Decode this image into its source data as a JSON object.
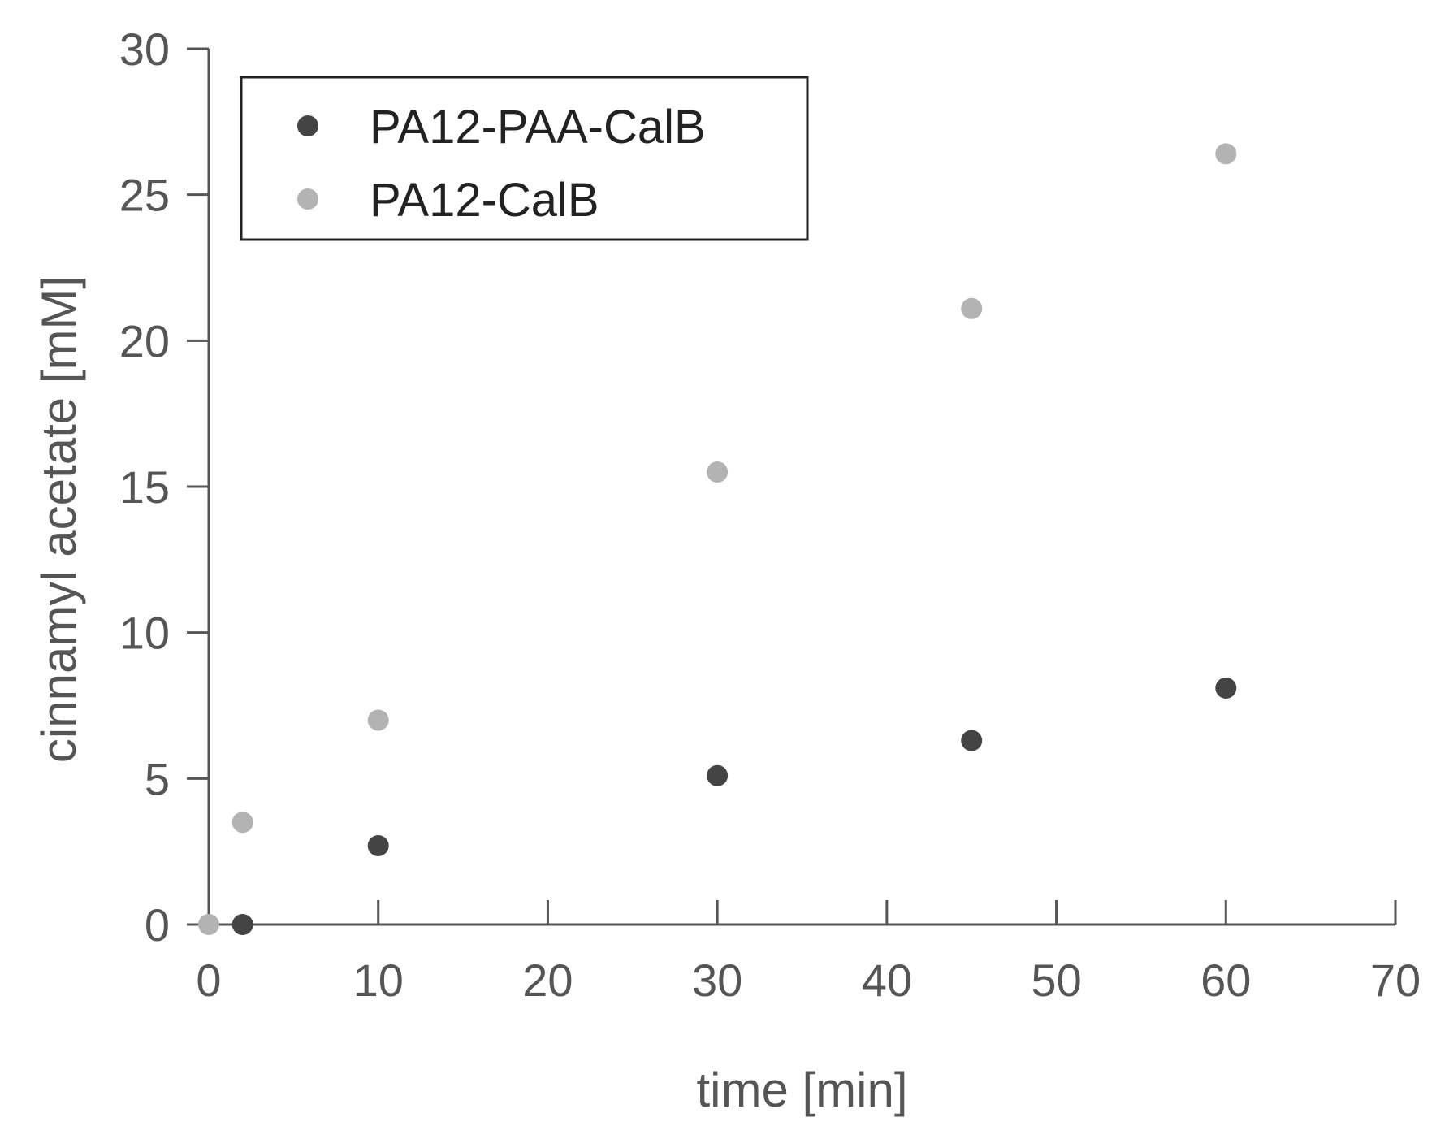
{
  "chart_data": {
    "type": "scatter",
    "title": "",
    "xlabel": "time [min]",
    "ylabel": "cinnamyl acetate [mM]",
    "xlim": [
      0,
      70
    ],
    "ylim": [
      0,
      30
    ],
    "xticks": [
      0,
      10,
      20,
      30,
      40,
      50,
      60,
      70
    ],
    "yticks": [
      0,
      5,
      10,
      15,
      20,
      25,
      30
    ],
    "grid": false,
    "legend_position": "top-left",
    "series": [
      {
        "name": "PA12-PAA-CalB",
        "color": "#444444",
        "x": [
          2,
          10,
          30,
          45,
          60
        ],
        "y": [
          0,
          2.7,
          5.1,
          6.3,
          8.1
        ]
      },
      {
        "name": "PA12-CalB",
        "color": "#b3b3b3",
        "x": [
          0,
          2,
          10,
          30,
          45,
          60
        ],
        "y": [
          0,
          3.5,
          7.0,
          15.5,
          21.1,
          26.4
        ]
      }
    ]
  }
}
